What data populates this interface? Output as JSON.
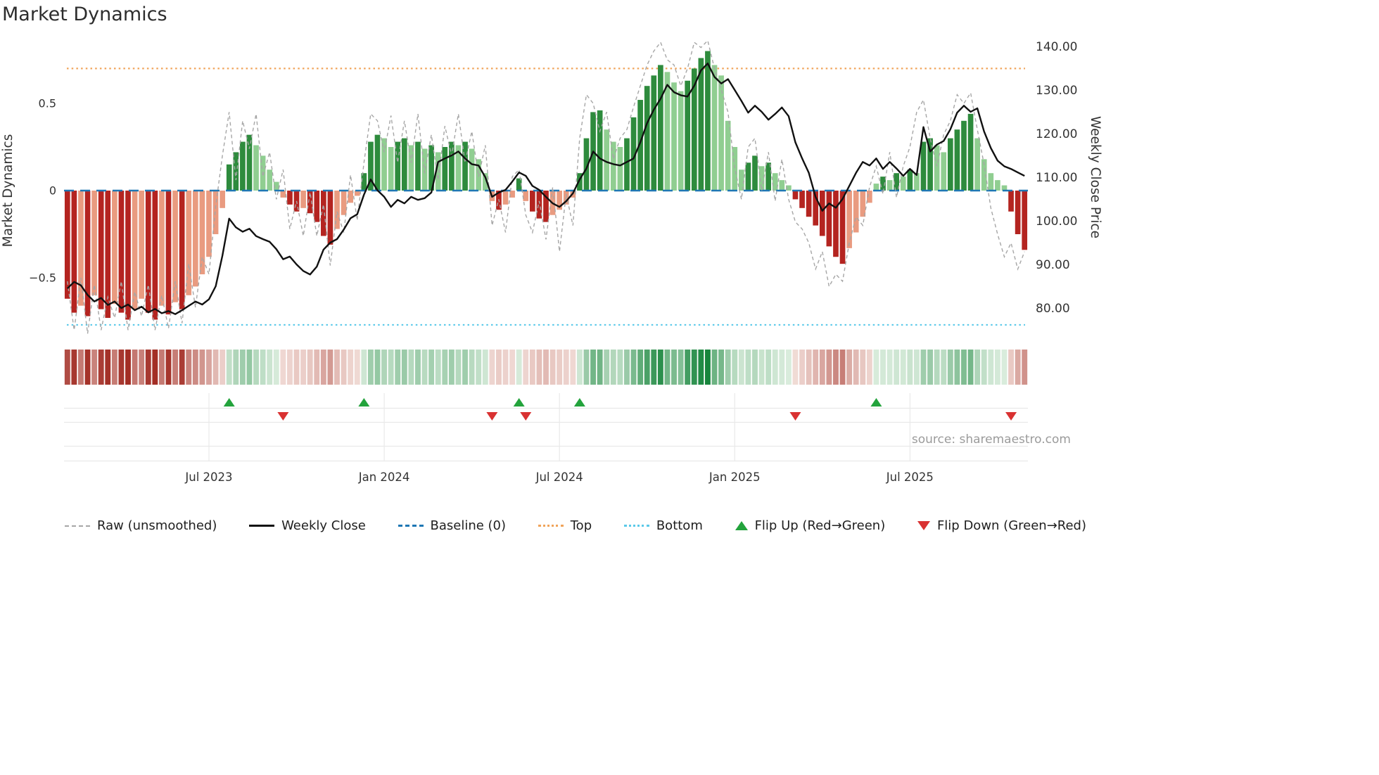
{
  "title": "Market Dynamics",
  "source": "source: sharemaestro.com",
  "axes": {
    "left_label": "Market Dynamics",
    "right_label": "Weekly Close Price"
  },
  "legend": {
    "items": [
      {
        "key": "raw",
        "label": "Raw (unsmoothed)"
      },
      {
        "key": "weekly_close",
        "label": "Weekly Close"
      },
      {
        "key": "baseline",
        "label": "Baseline (0)"
      },
      {
        "key": "top",
        "label": "Top"
      },
      {
        "key": "bottom",
        "label": "Bottom"
      },
      {
        "key": "flip_up",
        "label": "Flip Up (Red→Green)"
      },
      {
        "key": "flip_down",
        "label": "Flip Down (Green→Red)"
      }
    ]
  },
  "colors": {
    "bar_green_dark": "#2e8b3d",
    "bar_green_light": "#90ce91",
    "bar_red_dark": "#b42420",
    "bar_red_light": "#e99b80",
    "close_line": "#111111",
    "raw_line": "#a6a6a6",
    "baseline": "#1f77b4",
    "top_line": "#f0a45a",
    "bottom_line": "#5bc9e9",
    "flip_up": "#23a33c",
    "flip_down": "#d93232",
    "heat_pos_low": "#e8f4e8",
    "heat_pos_high": "#17853c",
    "heat_neg_low": "#f6e7e2",
    "heat_neg_high": "#9c1f16",
    "grid": "#e9e9e9",
    "tick_text": "#333333"
  },
  "chart_data": {
    "type": "bar+line",
    "x_unit": "week",
    "weeks": 143,
    "x_ticks": [
      {
        "i": 21,
        "t": "Jul 2023"
      },
      {
        "i": 47,
        "t": "Jan 2024"
      },
      {
        "i": 73,
        "t": "Jul 2024"
      },
      {
        "i": 99,
        "t": "Jan 2025"
      },
      {
        "i": 125,
        "t": "Jul 2025"
      }
    ],
    "left_ticks": [
      {
        "v": 0.5,
        "t": "0.5"
      },
      {
        "v": 0,
        "t": "0"
      },
      {
        "v": -0.5,
        "t": "−0.5"
      }
    ],
    "right_ticks": [
      {
        "v": 140,
        "t": "140.00"
      },
      {
        "v": 130,
        "t": "130.00"
      },
      {
        "v": 120,
        "t": "120.00"
      },
      {
        "v": 110,
        "t": "110.00"
      },
      {
        "v": 100,
        "t": "100.00"
      },
      {
        "v": 90,
        "t": "90.00"
      },
      {
        "v": 80,
        "t": "80.00"
      }
    ],
    "left_ylim": [
      -0.85,
      0.88
    ],
    "right_ylim": [
      77,
      141.5
    ],
    "baseline": 0,
    "top_threshold": 0.7,
    "bottom_threshold": -0.77,
    "flip_up_weeks": [
      24,
      44,
      67,
      76,
      120
    ],
    "flip_down_weeks": [
      32,
      63,
      68,
      108,
      140
    ],
    "oscillator": [
      -0.62,
      -0.7,
      -0.66,
      -0.72,
      -0.6,
      -0.68,
      -0.73,
      -0.65,
      -0.7,
      -0.74,
      -0.68,
      -0.62,
      -0.7,
      -0.74,
      -0.66,
      -0.71,
      -0.64,
      -0.68,
      -0.6,
      -0.55,
      -0.48,
      -0.38,
      -0.25,
      -0.1,
      0.15,
      0.22,
      0.28,
      0.32,
      0.26,
      0.2,
      0.12,
      0.05,
      -0.04,
      -0.08,
      -0.12,
      -0.1,
      -0.13,
      -0.18,
      -0.26,
      -0.31,
      -0.22,
      -0.14,
      -0.07,
      -0.03,
      0.1,
      0.28,
      0.32,
      0.3,
      0.25,
      0.28,
      0.3,
      0.26,
      0.28,
      0.24,
      0.26,
      0.22,
      0.25,
      0.28,
      0.26,
      0.28,
      0.24,
      0.18,
      0.1,
      -0.06,
      -0.11,
      -0.08,
      -0.04,
      0.07,
      -0.06,
      -0.12,
      -0.16,
      -0.18,
      -0.14,
      -0.11,
      -0.08,
      -0.04,
      0.1,
      0.3,
      0.45,
      0.46,
      0.35,
      0.28,
      0.25,
      0.3,
      0.42,
      0.52,
      0.6,
      0.66,
      0.72,
      0.68,
      0.62,
      0.57,
      0.63,
      0.7,
      0.76,
      0.8,
      0.72,
      0.66,
      0.4,
      0.25,
      0.12,
      0.16,
      0.2,
      0.14,
      0.16,
      0.1,
      0.06,
      0.03,
      -0.05,
      -0.1,
      -0.15,
      -0.2,
      -0.26,
      -0.32,
      -0.38,
      -0.42,
      -0.33,
      -0.24,
      -0.15,
      -0.07,
      0.04,
      0.08,
      0.06,
      0.1,
      0.08,
      0.12,
      0.1,
      0.28,
      0.3,
      0.26,
      0.22,
      0.3,
      0.35,
      0.4,
      0.44,
      0.3,
      0.18,
      0.1,
      0.06,
      0.03,
      -0.12,
      -0.25,
      -0.34
    ],
    "oscillator_shade": "ddldlddlddllddldldllllllddddlllllddldddd lllldddlld dldldlddld lllldlldld ddlllldddd lllddddddl llddddllll lddldllldd ddddddllll ldldldlddl lddddlllll ddd",
    "raw": [
      -0.52,
      -0.8,
      -0.5,
      -0.82,
      -0.54,
      -0.8,
      -0.61,
      -0.73,
      -0.52,
      -0.8,
      -0.58,
      -0.72,
      -0.54,
      -0.8,
      -0.6,
      -0.79,
      -0.52,
      -0.76,
      -0.42,
      -0.67,
      -0.38,
      -0.48,
      -0.09,
      0.2,
      0.45,
      0.06,
      0.4,
      0.24,
      0.44,
      0.08,
      0.22,
      -0.05,
      0.12,
      -0.22,
      -0.06,
      -0.26,
      -0.01,
      -0.26,
      -0.08,
      -0.43,
      -0.12,
      -0.24,
      0.09,
      -0.17,
      0.16,
      0.44,
      0.4,
      0.22,
      0.43,
      0.16,
      0.4,
      0.16,
      0.44,
      0.1,
      0.32,
      0.06,
      0.37,
      0.2,
      0.44,
      0.16,
      0.34,
      0.08,
      0.26,
      -0.2,
      -0.05,
      -0.24,
      0.08,
      0.12,
      -0.14,
      -0.24,
      -0.06,
      -0.28,
      0.02,
      -0.35,
      -0.02,
      -0.2,
      0.3,
      0.55,
      0.5,
      0.34,
      0.45,
      0.18,
      0.3,
      0.35,
      0.48,
      0.6,
      0.72,
      0.8,
      0.85,
      0.75,
      0.72,
      0.6,
      0.7,
      0.85,
      0.82,
      0.86,
      0.7,
      0.58,
      0.45,
      0.13,
      -0.05,
      0.25,
      0.3,
      0.0,
      0.22,
      -0.06,
      0.18,
      -0.05,
      -0.18,
      -0.22,
      -0.3,
      -0.45,
      -0.35,
      -0.55,
      -0.48,
      -0.52,
      -0.3,
      -0.15,
      -0.2,
      0.02,
      0.14,
      -0.02,
      0.22,
      -0.04,
      0.14,
      0.25,
      0.45,
      0.52,
      0.3,
      0.14,
      0.32,
      0.4,
      0.55,
      0.5,
      0.56,
      0.35,
      0.15,
      -0.1,
      -0.25,
      -0.38,
      -0.3,
      -0.45,
      -0.35
    ],
    "weekly_close": [
      84.5,
      86.0,
      85.2,
      83.0,
      81.5,
      82.3,
      80.7,
      81.5,
      80.0,
      80.8,
      79.5,
      80.3,
      79.0,
      79.8,
      78.8,
      79.3,
      78.6,
      79.5,
      80.5,
      81.5,
      80.8,
      82.0,
      85.0,
      92.0,
      100.5,
      98.5,
      97.5,
      98.2,
      96.5,
      95.8,
      95.2,
      93.5,
      91.2,
      91.8,
      90.0,
      88.5,
      87.7,
      89.5,
      93.4,
      95.0,
      95.8,
      98.0,
      100.6,
      101.5,
      106.0,
      109.5,
      107.0,
      105.5,
      103.2,
      104.8,
      104.0,
      105.5,
      104.8,
      105.2,
      106.5,
      113.5,
      114.3,
      115.0,
      115.9,
      114.3,
      113.0,
      112.7,
      110.0,
      105.5,
      106.5,
      107.1,
      109.0,
      111.1,
      110.3,
      108.0,
      107.1,
      105.5,
      104.0,
      103.2,
      104.5,
      106.3,
      109.5,
      112.0,
      115.9,
      114.3,
      113.5,
      113.0,
      112.7,
      113.5,
      114.3,
      118.0,
      122.4,
      125.5,
      128.0,
      131.2,
      129.5,
      128.8,
      128.5,
      131.0,
      134.5,
      136.1,
      133.0,
      131.5,
      132.5,
      130.0,
      127.5,
      124.8,
      126.4,
      125.0,
      123.2,
      124.5,
      126.0,
      124.0,
      118.0,
      114.3,
      111.0,
      105.5,
      102.3,
      104.0,
      103.0,
      105.0,
      108.0,
      111.0,
      113.5,
      112.7,
      114.3,
      111.9,
      113.5,
      112.0,
      110.3,
      111.9,
      110.5,
      121.5,
      115.9,
      117.5,
      118.3,
      121.0,
      124.8,
      126.4,
      125.0,
      125.8,
      120.5,
      116.7,
      113.8,
      112.5,
      111.9,
      111.1,
      110.3
    ]
  }
}
